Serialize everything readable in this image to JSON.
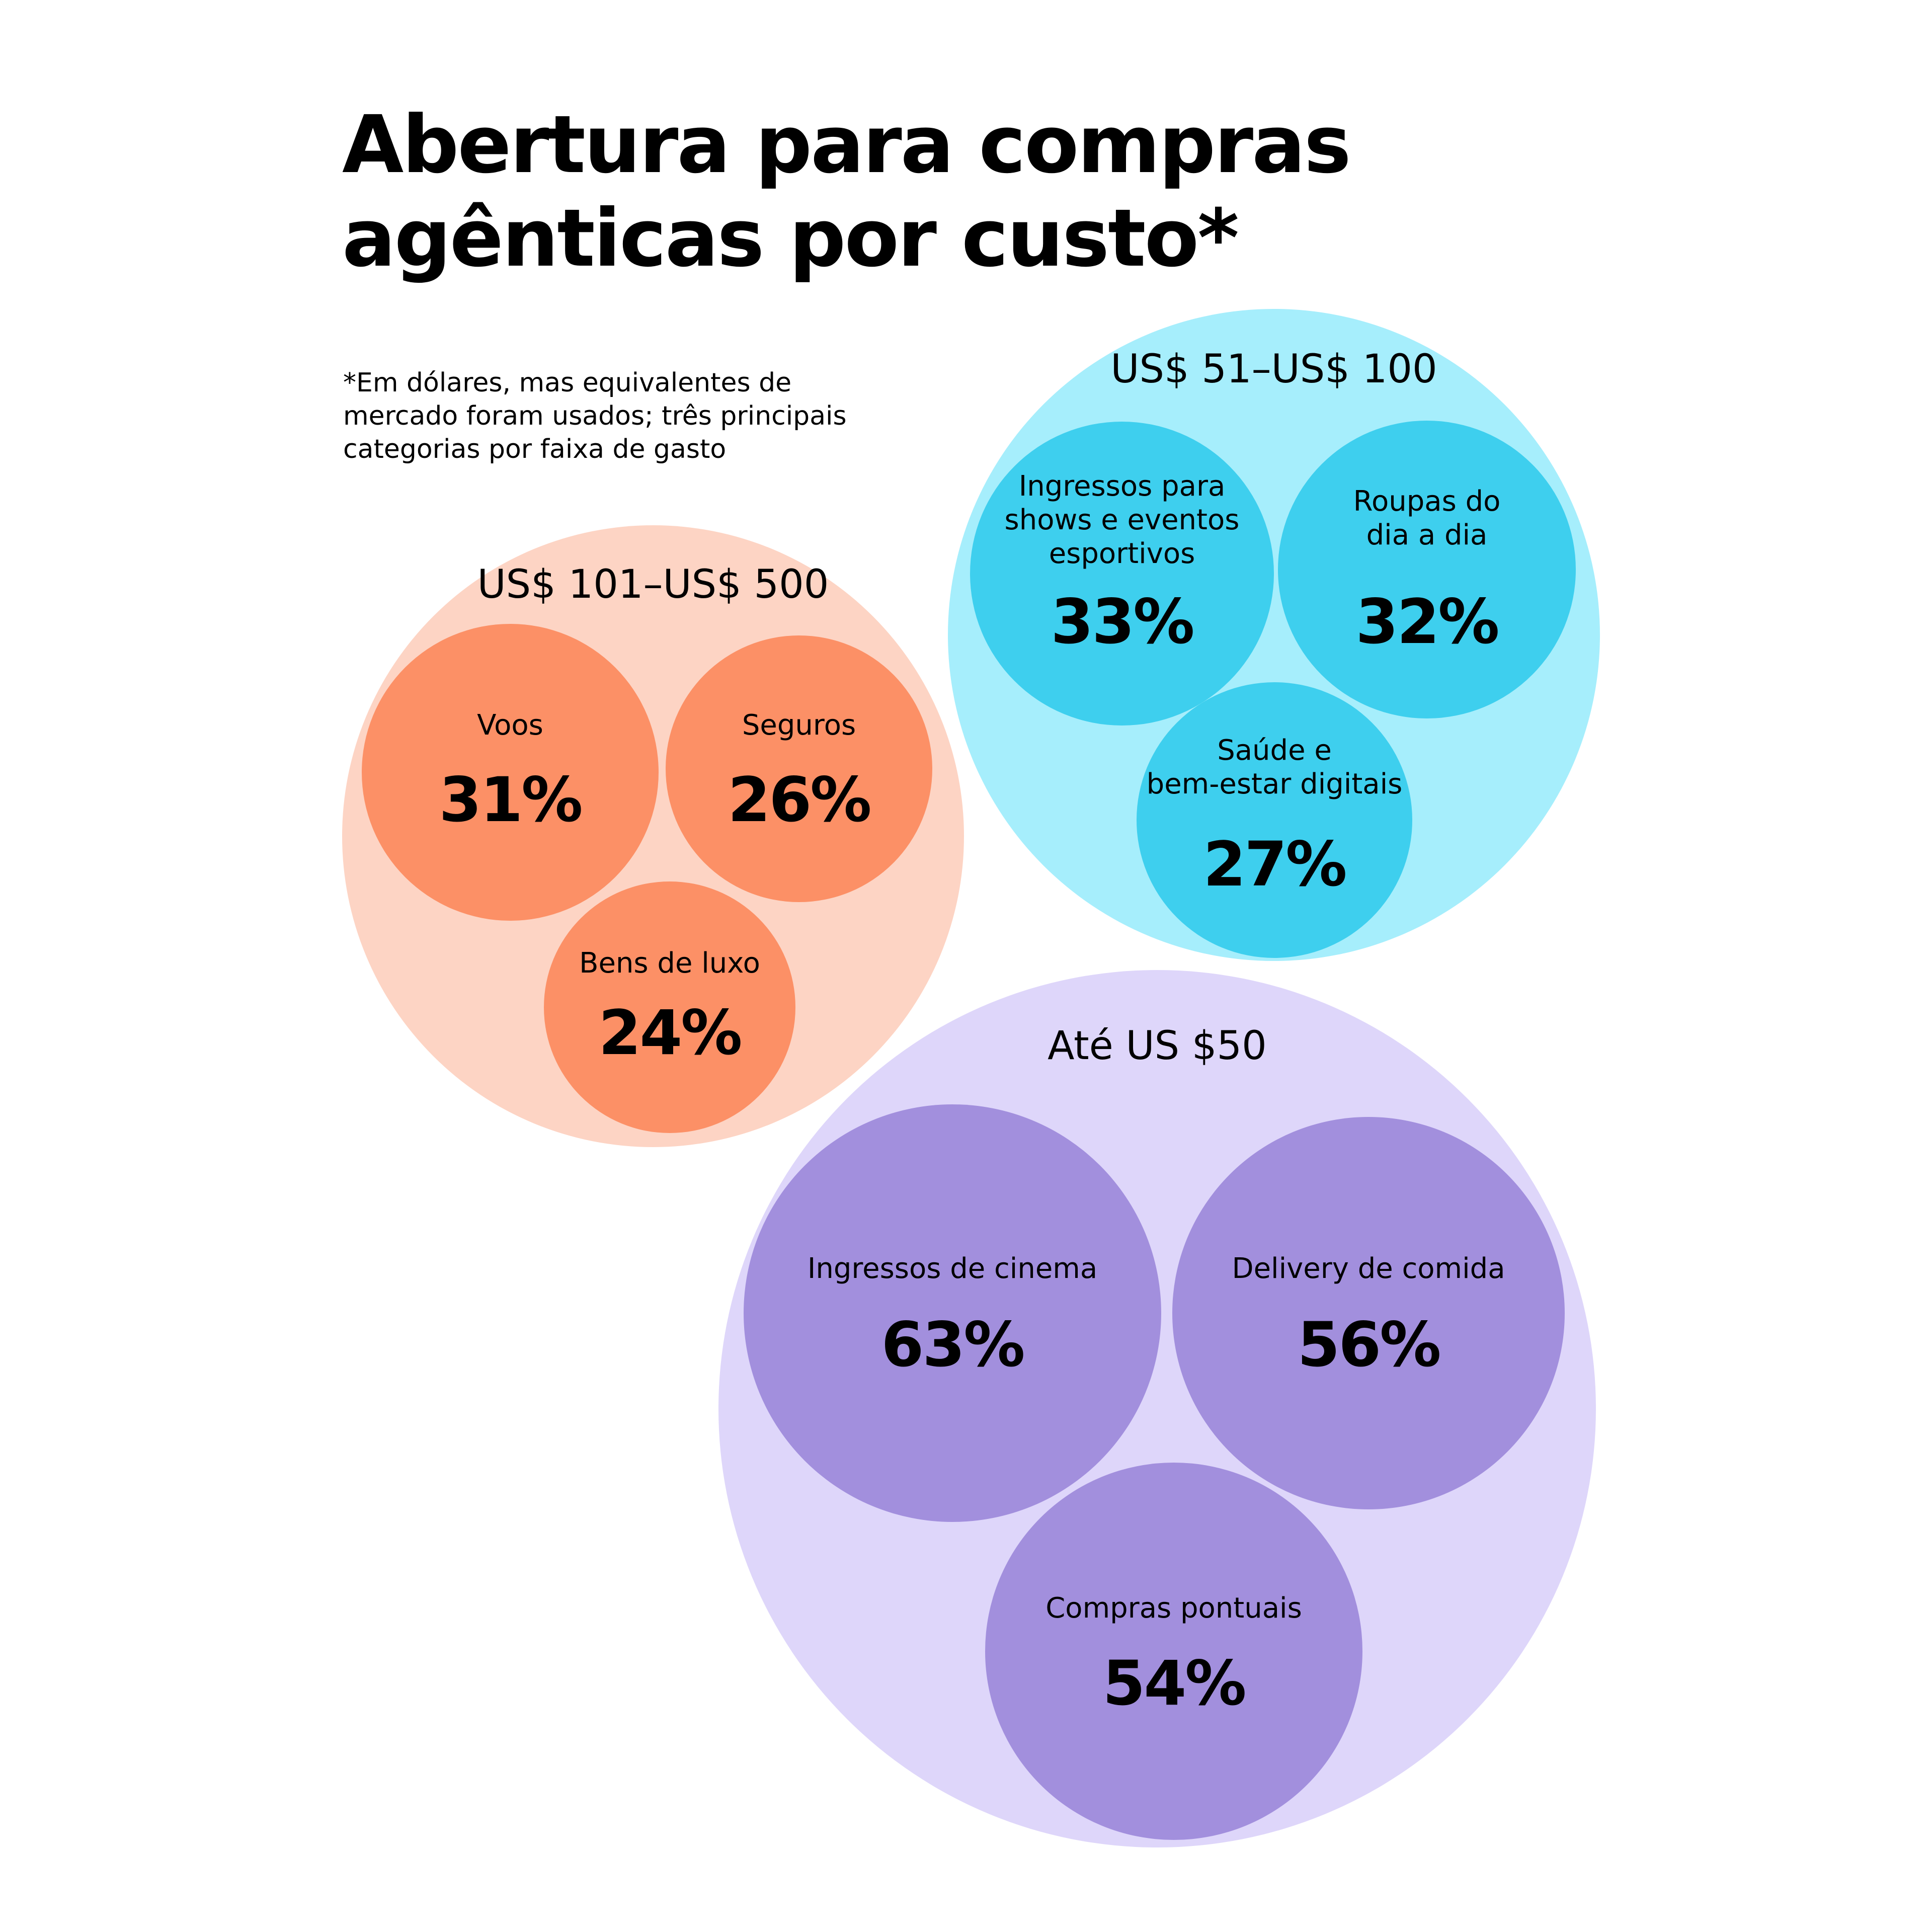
{
  "title": [
    "Abertura para compras",
    "agênticas por custo*"
  ],
  "footnote": [
    "*Em dólares, mas equivalentes de",
    "mercado foram usados; três principais",
    "categorias por faixa de gasto"
  ],
  "chart_data": {
    "type": "bubble",
    "title": "Abertura para compras agênticas por custo*",
    "groups": [
      {
        "name": "US$ 51–US$ 100",
        "color": "#a6eefc",
        "item_color": "#3ecfee",
        "items": [
          {
            "label": "Ingressos para shows e eventos esportivos",
            "lines": [
              "Ingressos para",
              "shows e eventos",
              "esportivos"
            ],
            "value": 33,
            "display": "33%"
          },
          {
            "label": "Roupas do dia a dia",
            "lines": [
              "Roupas do",
              "dia a dia"
            ],
            "value": 32,
            "display": "32%"
          },
          {
            "label": "Saúde e bem-estar digitais",
            "lines": [
              "Saúde e",
              "bem-estar digitais"
            ],
            "value": 27,
            "display": "27%"
          }
        ]
      },
      {
        "name": "US$ 101–US$ 500",
        "color": "#fdd4c4",
        "item_color": "#fc9066",
        "items": [
          {
            "label": "Voos",
            "lines": [
              "Voos"
            ],
            "value": 31,
            "display": "31%"
          },
          {
            "label": "Seguros",
            "lines": [
              "Seguros"
            ],
            "value": 26,
            "display": "26%"
          },
          {
            "label": "Bens de luxo",
            "lines": [
              "Bens de luxo"
            ],
            "value": 24,
            "display": "24%"
          }
        ]
      },
      {
        "name": "Até US $50",
        "color": "#ded6fa",
        "item_color": "#a28fdd",
        "items": [
          {
            "label": "Ingressos de cinema",
            "lines": [
              "Ingressos de cinema"
            ],
            "value": 63,
            "display": "63%"
          },
          {
            "label": "Delivery de comida",
            "lines": [
              "Delivery de comida"
            ],
            "value": 56,
            "display": "56%"
          },
          {
            "label": "Compras pontuais",
            "lines": [
              "Compras pontuais"
            ],
            "value": 54,
            "display": "54%"
          }
        ]
      }
    ]
  }
}
